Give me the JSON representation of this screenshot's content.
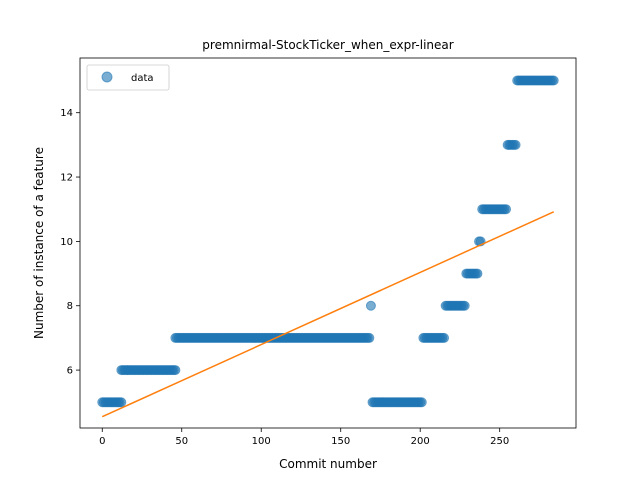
{
  "chart_data": {
    "type": "scatter",
    "title": "premnirmal-StockTicker_when_expr-linear",
    "xlabel": "Commit number",
    "ylabel": "Number of instance of a feature",
    "xlim": [
      -14,
      298
    ],
    "ylim": [
      4.2,
      15.7
    ],
    "xticks": [
      0,
      50,
      100,
      150,
      200,
      250
    ],
    "yticks": [
      6,
      8,
      10,
      12,
      14
    ],
    "legend": {
      "position": "top-left",
      "entries": [
        "data"
      ]
    },
    "colors": {
      "points": "#1f77b4",
      "fit": "#ff7f0e"
    },
    "grid": false,
    "segments": [
      {
        "x_start": 0,
        "x_end": 12,
        "y": 5
      },
      {
        "x_start": 12,
        "x_end": 46,
        "y": 6
      },
      {
        "x_start": 46,
        "x_end": 168,
        "y": 7
      },
      {
        "x_start": 169,
        "x_end": 169,
        "y": 8
      },
      {
        "x_start": 170,
        "x_end": 201,
        "y": 5
      },
      {
        "x_start": 202,
        "x_end": 215,
        "y": 7
      },
      {
        "x_start": 216,
        "x_end": 228,
        "y": 8
      },
      {
        "x_start": 229,
        "x_end": 236,
        "y": 9
      },
      {
        "x_start": 237,
        "x_end": 238,
        "y": 10
      },
      {
        "x_start": 239,
        "x_end": 254,
        "y": 11
      },
      {
        "x_start": 255,
        "x_end": 260,
        "y": 13
      },
      {
        "x_start": 261,
        "x_end": 284,
        "y": 15
      }
    ],
    "fit_line": {
      "x": [
        0,
        284
      ],
      "y": [
        4.55,
        10.92
      ]
    }
  }
}
